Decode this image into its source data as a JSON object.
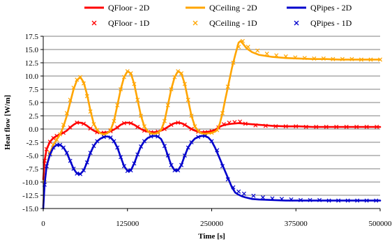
{
  "chart_data": {
    "type": "line",
    "title": "",
    "xlabel": "Time [s]",
    "ylabel": "Heat flow [W/m]",
    "xlim": [
      0,
      500000
    ],
    "ylim": [
      -15,
      17.5
    ],
    "x_ticks": [
      "0",
      "125000",
      "250000",
      "375000",
      "500000"
    ],
    "y_ticks": [
      "-15.0",
      "-12.5",
      "-10.0",
      "-7.5",
      "-5.0",
      "-2.5",
      "0.0",
      "2.5",
      "5.0",
      "7.5",
      "10.0",
      "12.5",
      "15.0",
      "17.5"
    ],
    "grid": "horizontal",
    "legend_position": "top",
    "colors": {
      "floor": "#ff0000",
      "ceiling": "#ffa500",
      "pipes": "#0000cc"
    },
    "series": [
      {
        "name": "QFloor - 2D",
        "style": "line",
        "color": "#ff0000",
        "x": [
          0,
          2000,
          5000,
          10000,
          15000,
          20000,
          25000,
          30000,
          35000,
          40000,
          45000,
          50000,
          55000,
          60000,
          65000,
          70000,
          75000,
          80000,
          85000,
          90000,
          95000,
          100000,
          105000,
          110000,
          115000,
          120000,
          125000,
          130000,
          135000,
          140000,
          145000,
          150000,
          155000,
          160000,
          165000,
          170000,
          175000,
          180000,
          185000,
          190000,
          195000,
          200000,
          205000,
          210000,
          215000,
          220000,
          225000,
          230000,
          235000,
          240000,
          245000,
          250000,
          255000,
          260000,
          265000,
          270000,
          280000,
          290000,
          300000,
          310000,
          320000,
          340000,
          360000,
          380000,
          400000,
          420000,
          440000,
          460000,
          480000,
          500000
        ],
        "y": [
          -9.5,
          -6.0,
          -3.8,
          -2.4,
          -1.7,
          -1.3,
          -1.0,
          -0.7,
          -0.3,
          0.3,
          0.8,
          1.2,
          1.2,
          1.0,
          0.6,
          0.1,
          -0.3,
          -0.6,
          -0.7,
          -0.7,
          -0.6,
          -0.4,
          -0.1,
          0.3,
          0.8,
          1.1,
          1.2,
          1.1,
          0.8,
          0.4,
          0.0,
          -0.3,
          -0.5,
          -0.6,
          -0.6,
          -0.5,
          -0.3,
          0.0,
          0.4,
          0.8,
          1.1,
          1.2,
          1.1,
          0.8,
          0.4,
          0.0,
          -0.3,
          -0.5,
          -0.6,
          -0.6,
          -0.5,
          -0.4,
          -0.2,
          0.3,
          0.6,
          0.8,
          1.0,
          1.1,
          1.0,
          0.9,
          0.8,
          0.6,
          0.5,
          0.5,
          0.4,
          0.4,
          0.4,
          0.4,
          0.4,
          0.4
        ]
      },
      {
        "name": "QCeiling - 2D",
        "style": "line",
        "color": "#ffa500",
        "x": [
          0,
          2000,
          5000,
          10000,
          15000,
          20000,
          25000,
          30000,
          35000,
          40000,
          45000,
          50000,
          55000,
          60000,
          65000,
          70000,
          75000,
          80000,
          85000,
          90000,
          95000,
          100000,
          105000,
          110000,
          115000,
          120000,
          125000,
          130000,
          135000,
          140000,
          145000,
          150000,
          155000,
          160000,
          165000,
          170000,
          175000,
          180000,
          185000,
          190000,
          195000,
          200000,
          205000,
          210000,
          215000,
          220000,
          225000,
          230000,
          235000,
          240000,
          245000,
          250000,
          255000,
          258000,
          262000,
          266000,
          270000,
          275000,
          280000,
          285000,
          290000,
          293000,
          297000,
          302000,
          310000,
          320000,
          340000,
          360000,
          380000,
          400000,
          420000,
          440000,
          460000,
          480000,
          500000
        ],
        "y": [
          -14.5,
          -10.0,
          -7.0,
          -4.5,
          -3.0,
          -2.0,
          -1.0,
          0.5,
          2.5,
          5.0,
          7.5,
          9.2,
          9.8,
          8.8,
          6.5,
          3.5,
          1.0,
          -0.2,
          -0.8,
          -1.0,
          -0.8,
          -0.2,
          1.5,
          4.5,
          7.5,
          9.8,
          10.9,
          10.5,
          8.5,
          5.5,
          2.5,
          0.5,
          -0.4,
          -0.8,
          -0.9,
          -0.7,
          -0.2,
          1.5,
          4.5,
          7.5,
          9.8,
          10.9,
          10.5,
          8.5,
          5.5,
          2.5,
          0.5,
          -0.4,
          -0.8,
          -0.9,
          -0.8,
          -0.7,
          -0.5,
          -0.2,
          1.0,
          3.0,
          5.5,
          8.5,
          11.5,
          14.0,
          16.3,
          16.6,
          16.0,
          15.2,
          14.5,
          14.0,
          13.6,
          13.4,
          13.3,
          13.2,
          13.2,
          13.1,
          13.1,
          13.1,
          13.1
        ]
      },
      {
        "name": "QPipes - 2D",
        "style": "line",
        "color": "#0000cc",
        "x": [
          0,
          2000,
          5000,
          10000,
          15000,
          20000,
          25000,
          30000,
          35000,
          40000,
          45000,
          50000,
          55000,
          60000,
          65000,
          70000,
          75000,
          80000,
          85000,
          90000,
          95000,
          100000,
          105000,
          110000,
          115000,
          120000,
          125000,
          130000,
          135000,
          140000,
          145000,
          150000,
          155000,
          160000,
          165000,
          170000,
          175000,
          180000,
          185000,
          190000,
          195000,
          200000,
          205000,
          210000,
          215000,
          220000,
          225000,
          230000,
          235000,
          240000,
          245000,
          250000,
          255000,
          260000,
          265000,
          270000,
          275000,
          280000,
          285000,
          290000,
          295000,
          300000,
          310000,
          320000,
          340000,
          360000,
          380000,
          400000,
          420000,
          440000,
          460000,
          480000,
          500000
        ],
        "y": [
          -15.0,
          -10.5,
          -7.0,
          -4.8,
          -3.5,
          -3.0,
          -3.0,
          -3.5,
          -4.5,
          -6.0,
          -7.5,
          -8.4,
          -8.5,
          -7.8,
          -6.3,
          -4.5,
          -3.2,
          -2.3,
          -1.8,
          -1.5,
          -1.4,
          -1.6,
          -2.3,
          -3.5,
          -5.3,
          -7.0,
          -7.9,
          -7.8,
          -6.5,
          -4.8,
          -3.3,
          -2.3,
          -1.7,
          -1.4,
          -1.3,
          -1.4,
          -1.9,
          -3.2,
          -5.0,
          -6.8,
          -7.8,
          -7.8,
          -6.8,
          -5.0,
          -3.5,
          -2.5,
          -1.8,
          -1.5,
          -1.3,
          -1.3,
          -1.6,
          -2.3,
          -3.5,
          -5.0,
          -6.5,
          -8.0,
          -9.5,
          -11.0,
          -12.0,
          -12.4,
          -12.7,
          -12.9,
          -13.2,
          -13.3,
          -13.4,
          -13.5,
          -13.5,
          -13.5,
          -13.5,
          -13.5,
          -13.5,
          -13.5,
          -13.5
        ]
      },
      {
        "name": "QFloor - 1D",
        "style": "markers",
        "marker": "cross",
        "color": "#ff0000",
        "x": [
          2000,
          5000,
          10000,
          15000,
          20000,
          30000,
          40000,
          50000,
          60000,
          70000,
          80000,
          90000,
          100000,
          110000,
          120000,
          130000,
          140000,
          150000,
          160000,
          170000,
          180000,
          190000,
          200000,
          210000,
          220000,
          230000,
          240000,
          250000,
          260000,
          268000,
          276000,
          284000,
          292000,
          300000,
          315000,
          330000,
          345000,
          360000,
          375000,
          390000,
          405000,
          420000,
          435000,
          450000,
          465000,
          480000,
          495000
        ],
        "y": [
          -6.0,
          -3.8,
          -2.4,
          -1.7,
          -1.3,
          -0.7,
          0.3,
          1.2,
          1.0,
          0.1,
          -0.6,
          -0.7,
          -0.4,
          0.3,
          1.1,
          1.1,
          0.4,
          -0.3,
          -0.6,
          -0.5,
          0.0,
          0.8,
          1.2,
          0.8,
          0.0,
          -0.5,
          -0.6,
          -0.4,
          0.3,
          0.9,
          1.2,
          1.3,
          1.4,
          1.0,
          0.7,
          0.6,
          0.5,
          0.5,
          0.5,
          0.4,
          0.4,
          0.4,
          0.4,
          0.4,
          0.4,
          0.4,
          0.4
        ]
      },
      {
        "name": "QCeiling - 1D",
        "style": "markers",
        "marker": "cross",
        "color": "#ffa500",
        "x": [
          2000,
          5000,
          10000,
          15000,
          20000,
          25000,
          30000,
          35000,
          40000,
          45000,
          50000,
          55000,
          60000,
          65000,
          70000,
          75000,
          80000,
          90000,
          100000,
          105000,
          110000,
          115000,
          120000,
          125000,
          130000,
          135000,
          140000,
          145000,
          150000,
          160000,
          170000,
          180000,
          185000,
          190000,
          195000,
          200000,
          205000,
          210000,
          215000,
          220000,
          225000,
          230000,
          240000,
          250000,
          258000,
          266000,
          274000,
          282000,
          290000,
          296000,
          304000,
          318000,
          332000,
          346000,
          360000,
          374000,
          388000,
          402000,
          416000,
          430000,
          444000,
          458000,
          472000,
          486000,
          500000
        ],
        "y": [
          -10.0,
          -7.0,
          -4.5,
          -3.0,
          -2.0,
          -1.0,
          0.8,
          3.0,
          5.5,
          7.8,
          9.3,
          9.8,
          8.6,
          6.2,
          3.3,
          0.9,
          -0.2,
          -1.0,
          -0.2,
          1.5,
          4.5,
          7.5,
          9.8,
          10.9,
          10.5,
          8.5,
          5.5,
          2.5,
          0.5,
          -0.8,
          -0.7,
          1.5,
          4.5,
          7.5,
          9.8,
          10.9,
          10.5,
          8.5,
          5.5,
          2.5,
          0.5,
          -0.4,
          -0.9,
          -0.7,
          -0.2,
          3.0,
          8.0,
          12.5,
          15.5,
          16.6,
          15.5,
          14.8,
          14.2,
          13.9,
          13.7,
          13.5,
          13.4,
          13.3,
          13.3,
          13.2,
          13.2,
          13.2,
          13.1,
          13.1,
          13.1
        ]
      },
      {
        "name": "QPipes - 1D",
        "style": "markers",
        "marker": "cross",
        "color": "#0000cc",
        "x": [
          2000,
          5000,
          10000,
          15000,
          20000,
          25000,
          30000,
          35000,
          40000,
          45000,
          50000,
          55000,
          60000,
          65000,
          70000,
          75000,
          80000,
          90000,
          100000,
          105000,
          110000,
          115000,
          120000,
          125000,
          130000,
          135000,
          140000,
          145000,
          150000,
          160000,
          170000,
          180000,
          185000,
          190000,
          195000,
          200000,
          205000,
          210000,
          215000,
          220000,
          230000,
          240000,
          250000,
          258000,
          266000,
          274000,
          282000,
          290000,
          298000,
          312000,
          326000,
          340000,
          354000,
          368000,
          382000,
          396000,
          410000,
          424000,
          438000,
          452000,
          466000,
          480000,
          494000
        ],
        "y": [
          -10.5,
          -7.0,
          -4.8,
          -3.5,
          -3.0,
          -3.0,
          -3.5,
          -4.5,
          -6.0,
          -7.5,
          -8.4,
          -8.5,
          -7.8,
          -6.3,
          -4.5,
          -3.2,
          -2.3,
          -1.5,
          -1.6,
          -2.3,
          -3.5,
          -5.3,
          -7.0,
          -7.9,
          -7.8,
          -6.5,
          -4.8,
          -3.3,
          -2.3,
          -1.4,
          -1.4,
          -3.2,
          -5.0,
          -6.8,
          -7.8,
          -7.8,
          -6.8,
          -5.0,
          -3.5,
          -2.5,
          -1.5,
          -1.3,
          -2.3,
          -4.0,
          -7.0,
          -9.5,
          -11.0,
          -11.8,
          -12.2,
          -12.6,
          -12.9,
          -13.1,
          -13.2,
          -13.3,
          -13.4,
          -13.4,
          -13.4,
          -13.5,
          -13.5,
          -13.5,
          -13.5,
          -13.5,
          -13.5
        ]
      }
    ]
  }
}
